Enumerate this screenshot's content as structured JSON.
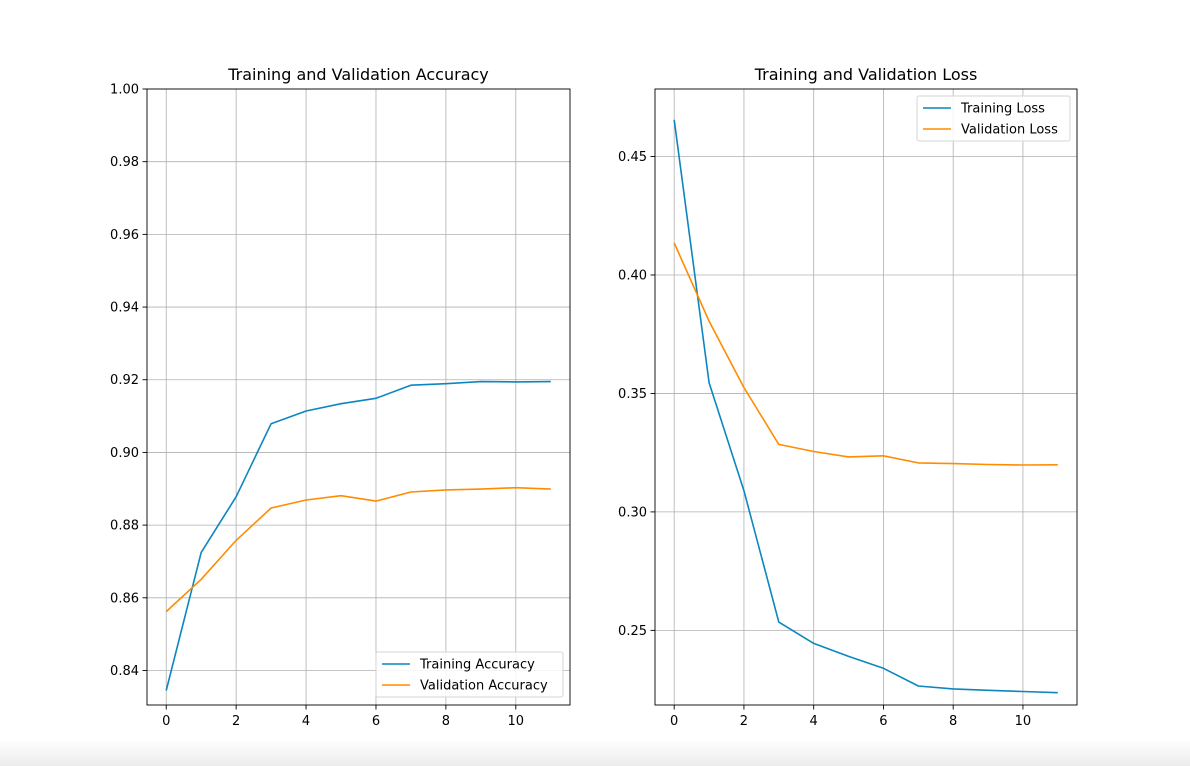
{
  "chart_data": [
    {
      "type": "line",
      "title": "Training and Validation Accuracy",
      "xlabel": "",
      "ylabel": "",
      "xlim": [
        -0.55,
        11.55
      ],
      "ylim": [
        0.8305,
        1.0
      ],
      "xticks": [
        0,
        2,
        4,
        6,
        8,
        10
      ],
      "yticks": [
        0.84,
        0.86,
        0.88,
        0.9,
        0.92,
        0.94,
        0.96,
        0.98,
        1.0
      ],
      "ytick_labels": [
        "0.84",
        "0.86",
        "0.88",
        "0.90",
        "0.92",
        "0.94",
        "0.96",
        "0.98",
        "1.00"
      ],
      "grid": true,
      "legend_position": "lower-right",
      "x": [
        0,
        1,
        2,
        3,
        4,
        5,
        6,
        7,
        8,
        9,
        10,
        11
      ],
      "series": [
        {
          "name": "Training Accuracy",
          "color": "#0c86bf",
          "values": [
            0.8345,
            0.8725,
            0.8878,
            0.9079,
            0.9114,
            0.9134,
            0.9149,
            0.9185,
            0.9189,
            0.9195,
            0.9194,
            0.9195
          ]
        },
        {
          "name": "Validation Accuracy",
          "color": "#ff8c00",
          "values": [
            0.8562,
            0.8651,
            0.8758,
            0.8847,
            0.8869,
            0.8881,
            0.8866,
            0.8891,
            0.8897,
            0.8899,
            0.8903,
            0.8899
          ]
        }
      ]
    },
    {
      "type": "line",
      "title": "Training and Validation Loss",
      "xlabel": "",
      "ylabel": "",
      "xlim": [
        -0.55,
        11.55
      ],
      "ylim": [
        0.2185,
        0.4785
      ],
      "xticks": [
        0,
        2,
        4,
        6,
        8,
        10
      ],
      "yticks": [
        0.25,
        0.3,
        0.35,
        0.4,
        0.45
      ],
      "ytick_labels": [
        "0.25",
        "0.30",
        "0.35",
        "0.40",
        "0.45"
      ],
      "grid": true,
      "legend_position": "upper-right",
      "x": [
        0,
        1,
        2,
        3,
        4,
        5,
        6,
        7,
        8,
        9,
        10,
        11
      ],
      "series": [
        {
          "name": "Training Loss",
          "color": "#0c86bf",
          "values": [
            0.4655,
            0.3545,
            0.309,
            0.2535,
            0.2445,
            0.239,
            0.234,
            0.2265,
            0.2253,
            0.2247,
            0.2242,
            0.2237
          ]
        },
        {
          "name": "Validation Loss",
          "color": "#ff8c00",
          "values": [
            0.4135,
            0.3805,
            0.3525,
            0.3285,
            0.3255,
            0.3232,
            0.3237,
            0.3207,
            0.3204,
            0.32,
            0.3198,
            0.3199
          ]
        }
      ]
    }
  ]
}
